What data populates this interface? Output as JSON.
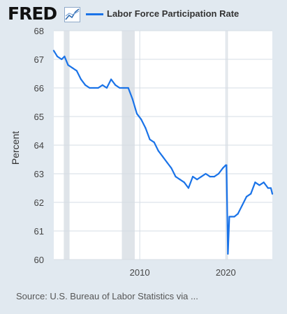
{
  "header": {
    "logo": "FRED",
    "legend_label": "Labor Force Participation Rate"
  },
  "source_text": "Source: U.S. Bureau of Labor Statistics via ...",
  "chart_data": {
    "type": "line",
    "title": "",
    "xlabel": "",
    "ylabel": "Percent",
    "ylim": [
      60,
      68
    ],
    "xlim": [
      "2000-01",
      "2025-06"
    ],
    "y_ticks": [
      60,
      61,
      62,
      63,
      64,
      65,
      66,
      67,
      68
    ],
    "x_ticks": [
      "2010",
      "2020"
    ],
    "grid": true,
    "recession_shading": [
      {
        "start": "2001-03",
        "end": "2001-11"
      },
      {
        "start": "2007-12",
        "end": "2009-06"
      },
      {
        "start": "2020-02",
        "end": "2020-04"
      }
    ],
    "series": [
      {
        "name": "Labor Force Participation Rate",
        "color": "#1a73e8",
        "x": [
          "2000-01",
          "2000-06",
          "2000-12",
          "2001-04",
          "2001-09",
          "2002-03",
          "2002-09",
          "2003-03",
          "2003-09",
          "2004-03",
          "2004-09",
          "2005-03",
          "2005-09",
          "2006-03",
          "2006-09",
          "2007-03",
          "2007-09",
          "2008-03",
          "2008-09",
          "2009-03",
          "2009-09",
          "2010-03",
          "2010-09",
          "2011-03",
          "2011-09",
          "2012-03",
          "2012-09",
          "2013-03",
          "2013-09",
          "2014-03",
          "2014-09",
          "2015-03",
          "2015-09",
          "2016-03",
          "2016-09",
          "2017-03",
          "2017-09",
          "2018-03",
          "2018-09",
          "2019-03",
          "2019-09",
          "2020-01",
          "2020-02",
          "2020-04",
          "2020-06",
          "2020-09",
          "2021-01",
          "2021-06",
          "2021-12",
          "2022-06",
          "2022-12",
          "2023-06",
          "2023-12",
          "2024-06",
          "2024-12",
          "2025-04",
          "2025-06"
        ],
        "values": [
          67.3,
          67.1,
          67.0,
          67.1,
          66.8,
          66.7,
          66.6,
          66.3,
          66.1,
          66.0,
          66.0,
          66.0,
          66.1,
          66.0,
          66.3,
          66.1,
          66.0,
          66.0,
          66.0,
          65.6,
          65.1,
          64.9,
          64.6,
          64.2,
          64.1,
          63.8,
          63.6,
          63.4,
          63.2,
          62.9,
          62.8,
          62.7,
          62.5,
          62.9,
          62.8,
          62.9,
          63.0,
          62.9,
          62.9,
          63.0,
          63.2,
          63.3,
          63.3,
          60.2,
          61.5,
          61.5,
          61.5,
          61.6,
          61.9,
          62.2,
          62.3,
          62.7,
          62.6,
          62.7,
          62.5,
          62.5,
          62.3
        ]
      }
    ]
  }
}
